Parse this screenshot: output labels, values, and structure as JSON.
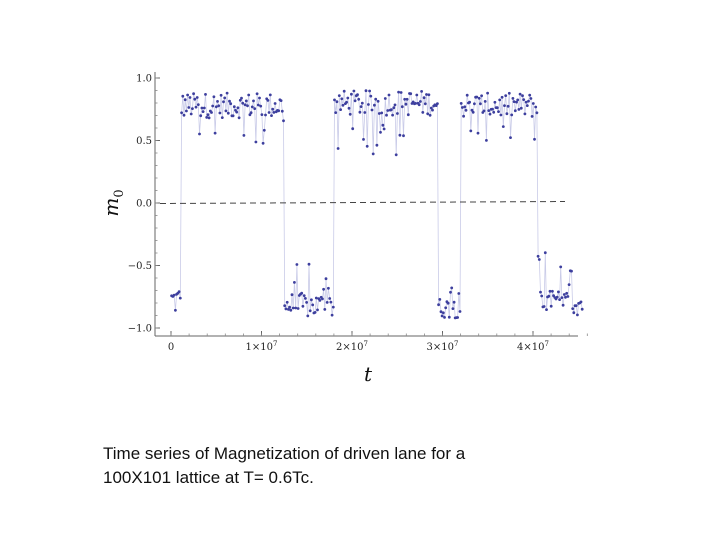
{
  "chart_data": {
    "type": "scatter",
    "xlabel": "t",
    "ylabel": "m",
    "ylabel_subscript": "0",
    "ylim": [
      -1.0,
      1.0
    ],
    "xlim": [
      0,
      46000000
    ],
    "y_ticks": [
      -1.0,
      -0.5,
      0.0,
      0.5,
      1.0
    ],
    "y_tick_labels": [
      "−1.0",
      "−0.5",
      "0.0",
      "0.5",
      "1.0"
    ],
    "x_ticks": [
      0,
      10000000,
      20000000,
      30000000,
      40000000
    ],
    "x_tick_labels": [
      "0",
      "1×10",
      "2×10",
      "3×10",
      "4×10"
    ],
    "x_tick_exponent": "7",
    "reference_line": {
      "y": 0.0,
      "style": "dashed"
    },
    "grid": false,
    "marker_color": "#3d3f9e",
    "line_color": "#c9cbe8",
    "segments": [
      {
        "x_start": 0,
        "x_end": 1100000,
        "mean": -0.78,
        "spread": 0.12
      },
      {
        "x_start": 1100000,
        "x_end": 12500000,
        "mean": 0.78,
        "spread": 0.1
      },
      {
        "x_start": 12500000,
        "x_end": 18000000,
        "mean": -0.82,
        "spread": 0.1
      },
      {
        "x_start": 18000000,
        "x_end": 29500000,
        "mean": 0.8,
        "spread": 0.1
      },
      {
        "x_start": 29500000,
        "x_end": 32000000,
        "mean": -0.84,
        "spread": 0.08
      },
      {
        "x_start": 32000000,
        "x_end": 40500000,
        "mean": 0.78,
        "spread": 0.1
      },
      {
        "x_start": 40500000,
        "x_end": 45500000,
        "mean": -0.8,
        "spread": 0.1
      }
    ],
    "points_per_segment_density": 1600000
  },
  "caption": {
    "line1": "Time series of Magnetization of driven lane for a",
    "line2": "100X101 lattice at T= 0.6Tc."
  }
}
